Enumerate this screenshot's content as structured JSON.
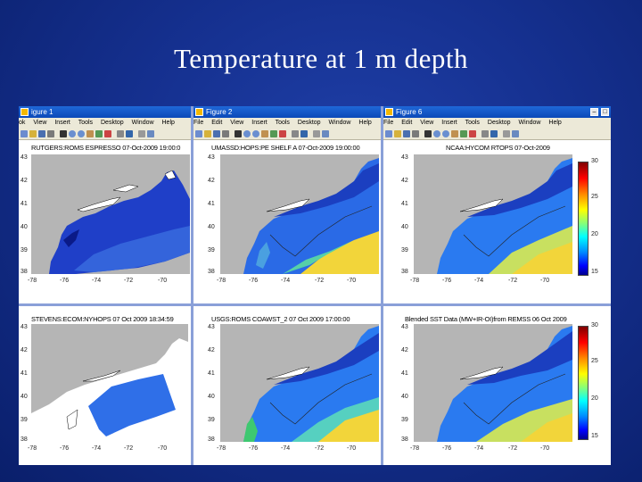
{
  "slide": {
    "title": "Temperature at 1 m depth"
  },
  "windows": [
    {
      "title": "igure 1"
    },
    {
      "title": "Figure 2"
    },
    {
      "title": "Figure 6"
    }
  ],
  "menu": {
    "items": [
      "File",
      "Edit",
      "View",
      "Insert",
      "Tools",
      "Desktop",
      "Window",
      "Help"
    ],
    "items_short": [
      "ok",
      "View",
      "Insert",
      "Tools",
      "Desktop",
      "Window",
      "Help"
    ]
  },
  "panels": [
    {
      "title": "RUTGERS:ROMS ESPRESSO 07-Oct-2009 19:00:0"
    },
    {
      "title": "UMASSD:HOPS:PE SHELF A 07-Oct-2009 19:00:00"
    },
    {
      "title": "NCAA:HYCOM RTOPS 07-Oct-2009"
    },
    {
      "title": "STEVENS:ECOM:NYHOPS 07 Oct 2009 18:34:59"
    },
    {
      "title": "USGS:ROMS COAWST_2 07 Oct 2009 17:00:00"
    },
    {
      "title": "Blended SST Data (MW+IR-OI)from REMSS 06 Oct 2009"
    }
  ],
  "axes": {
    "y_ticks": [
      "43",
      "42",
      "41",
      "40",
      "39",
      "38"
    ],
    "x_ticks": [
      "-78",
      "-76",
      "-74",
      "-72",
      "-70"
    ]
  },
  "colorbar": {
    "ticks": [
      "30",
      "25",
      "20",
      "15"
    ]
  },
  "colors": {
    "land": "#b5b5b5",
    "deep_blue": "#1f3fc8",
    "ocean_blue": "#2f6fe8",
    "warm": "#f2d53a"
  }
}
